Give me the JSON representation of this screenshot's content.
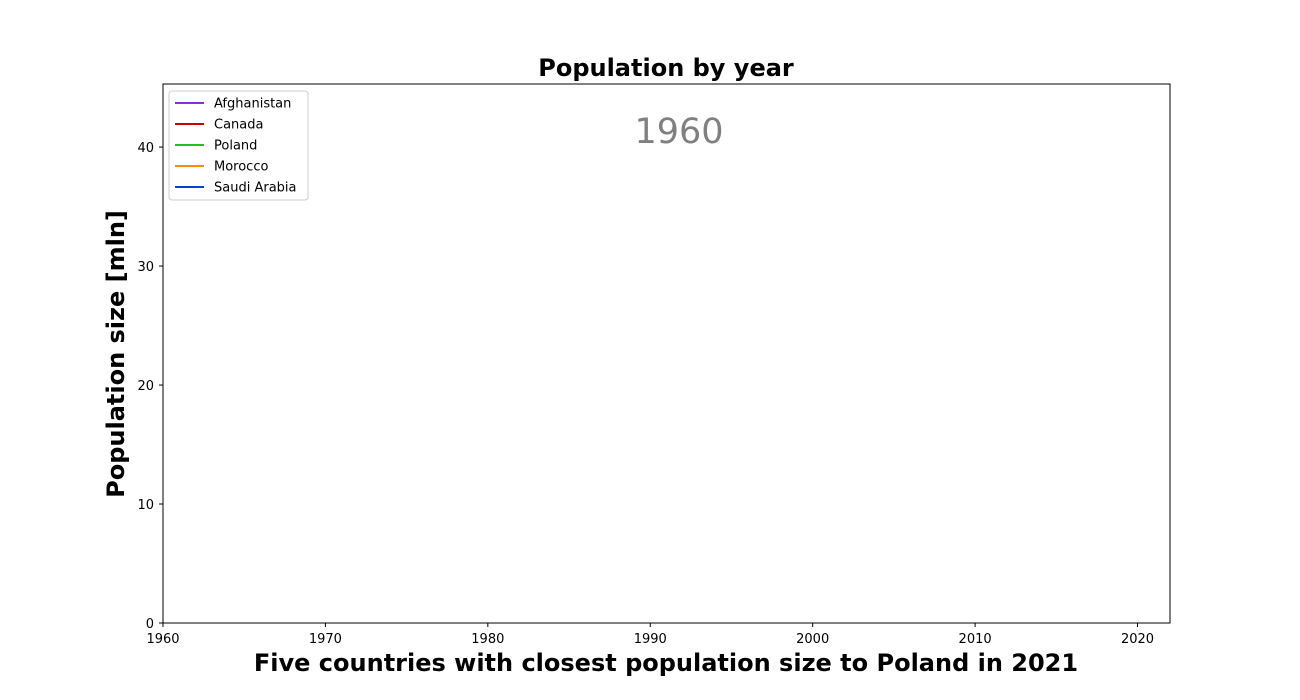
{
  "chart_data": {
    "type": "line",
    "title": "Population by year",
    "xlabel": "Five countries with closest population size to Poland in 2021",
    "ylabel": "Population size [mln]",
    "xlim": [
      1960,
      2022
    ],
    "ylim": [
      0,
      45.3
    ],
    "x_ticks": [
      1960,
      1970,
      1980,
      1990,
      2000,
      2010,
      2020
    ],
    "y_ticks": [
      0,
      10,
      20,
      30,
      40
    ],
    "annotation": "1960",
    "legend_position": "upper-left",
    "grid": false,
    "series": [
      {
        "name": "Afghanistan",
        "color": "#8a2be2",
        "x": [],
        "y": []
      },
      {
        "name": "Canada",
        "color": "#cc0000",
        "x": [],
        "y": []
      },
      {
        "name": "Poland",
        "color": "#22c022",
        "x": [],
        "y": []
      },
      {
        "name": "Morocco",
        "color": "#ff8c00",
        "x": [],
        "y": []
      },
      {
        "name": "Saudi Arabia",
        "color": "#0044cc",
        "x": [],
        "y": []
      }
    ]
  }
}
